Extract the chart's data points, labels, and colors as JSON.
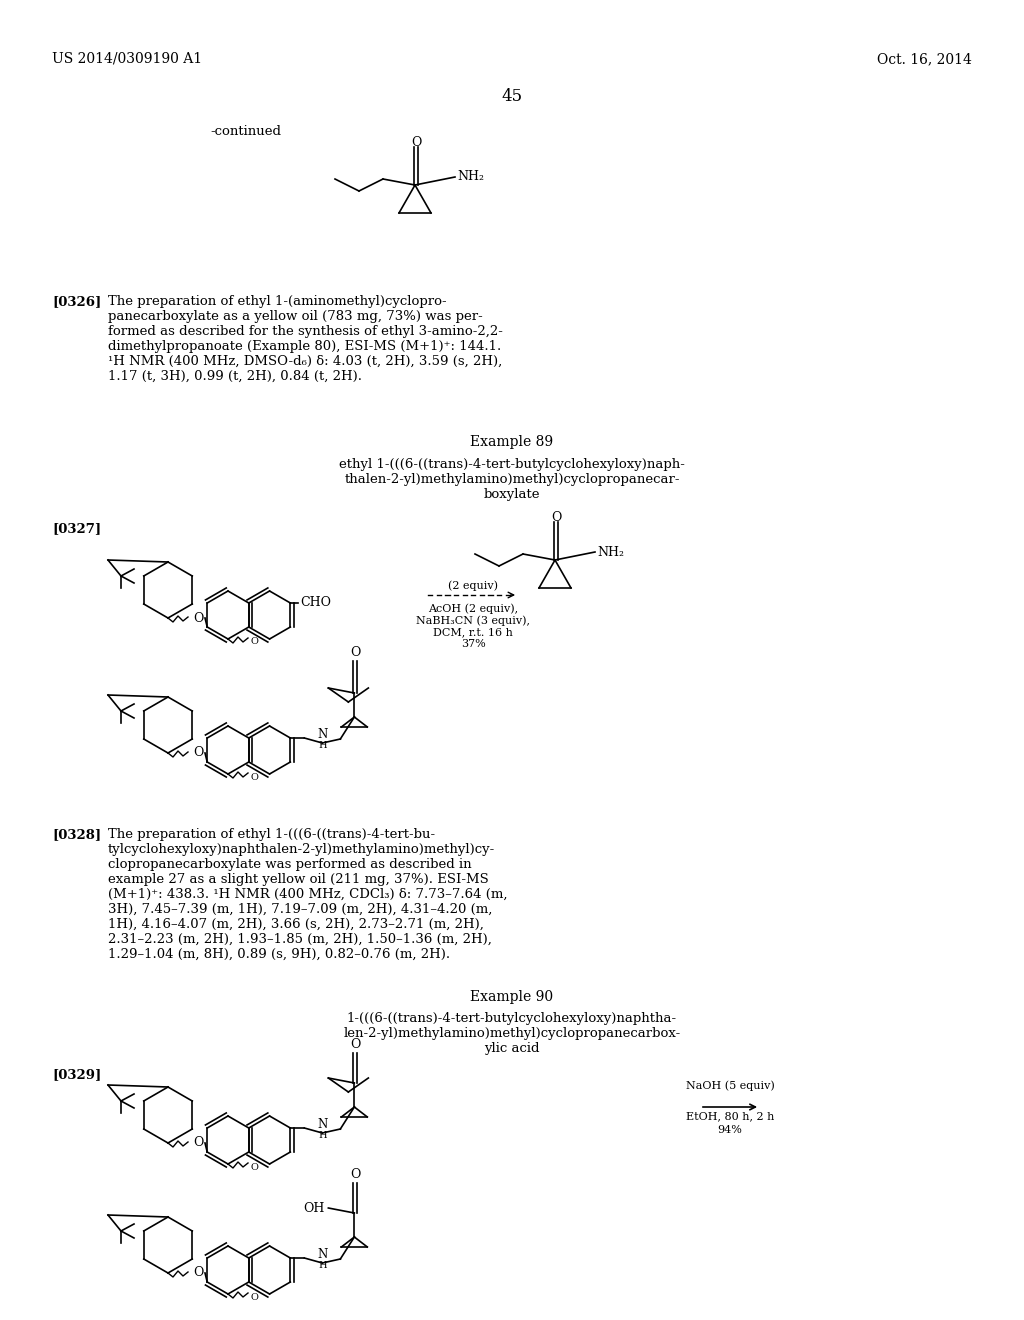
{
  "bg_color": "#ffffff",
  "header_left": "US 2014/0309190 A1",
  "header_right": "Oct. 16, 2014",
  "page_number": "45",
  "continued_label": "-continued",
  "p326_label": "[0326]",
  "p326_text": "The preparation of ethyl 1-(aminomethyl)cyclopro-\npanecarboxylate as a yellow oil (783 mg, 73%) was per-\nformed as described for the synthesis of ethyl 3-amino-2,2-\ndimethylpropanoate (Example 80), ESI-MS (M+1)⁺: 144.1.\n¹H NMR (400 MHz, DMSO-d₆) δ: 4.03 (t, 2H), 3.59 (s, 2H),\n1.17 (t, 3H), 0.99 (t, 2H), 0.84 (t, 2H).",
  "ex89_label": "Example 89",
  "ex89_name": "ethyl 1-(((6-((trans)-4-tert-butylcyclohexyloxy)naph-\nthalen-2-yl)methylamino)methyl)cyclopropanecar-\nboxylate",
  "p327_label": "[0327]",
  "p328_label": "[0328]",
  "p328_text": "The preparation of ethyl 1-(((6-((trans)-4-tert-bu-\ntylcyclohexyloxy)naphthalen-2-yl)methylamino)methyl)cy-\nclopropanecarboxylate was performed as described in\nexample 27 as a slight yellow oil (211 mg, 37%). ESI-MS\n(M+1)⁺: 438.3. ¹H NMR (400 MHz, CDCl₃) δ: 7.73–7.64 (m,\n3H), 7.45–7.39 (m, 1H), 7.19–7.09 (m, 2H), 4.31–4.20 (m,\n1H), 4.16–4.07 (m, 2H), 3.66 (s, 2H), 2.73–2.71 (m, 2H),\n2.31–2.23 (m, 2H), 1.93–1.85 (m, 2H), 1.50–1.36 (m, 2H),\n1.29–1.04 (m, 8H), 0.89 (s, 9H), 0.82–0.76 (m, 2H).",
  "ex90_label": "Example 90",
  "ex90_name": "1-(((6-((trans)-4-tert-butylcyclohexyloxy)naphtha-\nlen-2-yl)methylamino)methyl)cyclopropanecarbox-\nylic acid",
  "p329_label": "[0329]",
  "naoh_cond": "NaOH (5 equiv)\nEtOH, 80 h, 2 h\n94%"
}
